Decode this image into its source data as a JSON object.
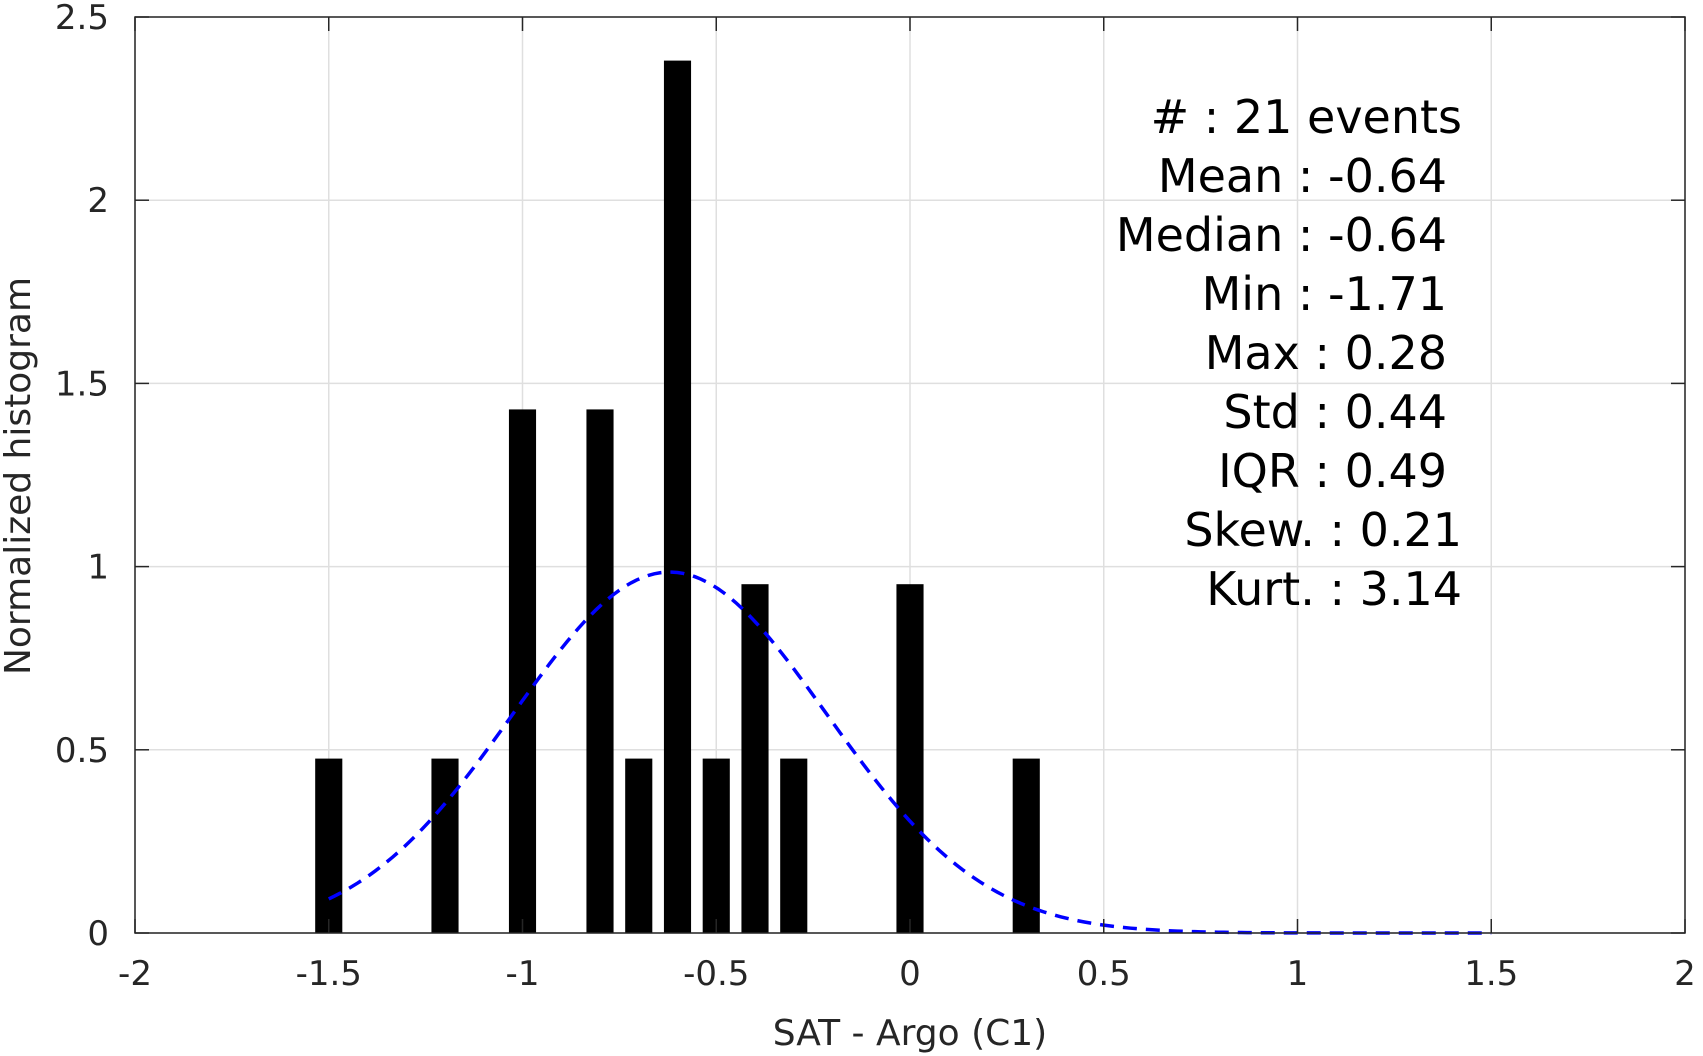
{
  "chart_data": {
    "type": "bar",
    "xlabel": "SAT - Argo (C1)",
    "ylabel": "Normalized histogram",
    "xlim": [
      -2,
      2
    ],
    "ylim": [
      0,
      2.5
    ],
    "x_ticks": [
      -2,
      -1.5,
      -1,
      -0.5,
      0,
      0.5,
      1,
      1.5,
      2
    ],
    "x_tick_labels": [
      "-2",
      "-1.5",
      "-1",
      "-0.5",
      "0",
      "0.5",
      "1",
      "1.5",
      "2"
    ],
    "y_ticks": [
      0,
      0.5,
      1,
      1.5,
      2,
      2.5
    ],
    "y_tick_labels": [
      "0",
      "0.5",
      "1",
      "1.5",
      "2",
      "2.5"
    ],
    "grid": true,
    "bar_color": "#000000",
    "bar_width": 0.07,
    "bars": [
      {
        "x": -1.5,
        "value": 0.476
      },
      {
        "x": -1.2,
        "value": 0.476
      },
      {
        "x": -1.0,
        "value": 1.429
      },
      {
        "x": -0.8,
        "value": 1.429
      },
      {
        "x": -0.7,
        "value": 0.476
      },
      {
        "x": -0.6,
        "value": 2.381
      },
      {
        "x": -0.5,
        "value": 0.476
      },
      {
        "x": -0.4,
        "value": 0.952
      },
      {
        "x": -0.3,
        "value": 0.476
      },
      {
        "x": 0.0,
        "value": 0.952
      },
      {
        "x": 0.3,
        "value": 0.476
      }
    ],
    "fit_curve": {
      "type": "normal-pdf",
      "mean": -0.62,
      "std": 0.405,
      "x_range": [
        -1.5,
        1.5
      ],
      "color": "#0000ff",
      "style": "dashed"
    },
    "annotation": {
      "lines": [
        "#  : 21 events",
        "Mean : -0.64",
        "Median : -0.64",
        "Min : -1.71",
        "Max : 0.28",
        "Std : 0.44",
        "IQR : 0.49",
        "Skew. : 0.21",
        "Kurt. : 3.14"
      ],
      "placement": "top-right"
    }
  }
}
